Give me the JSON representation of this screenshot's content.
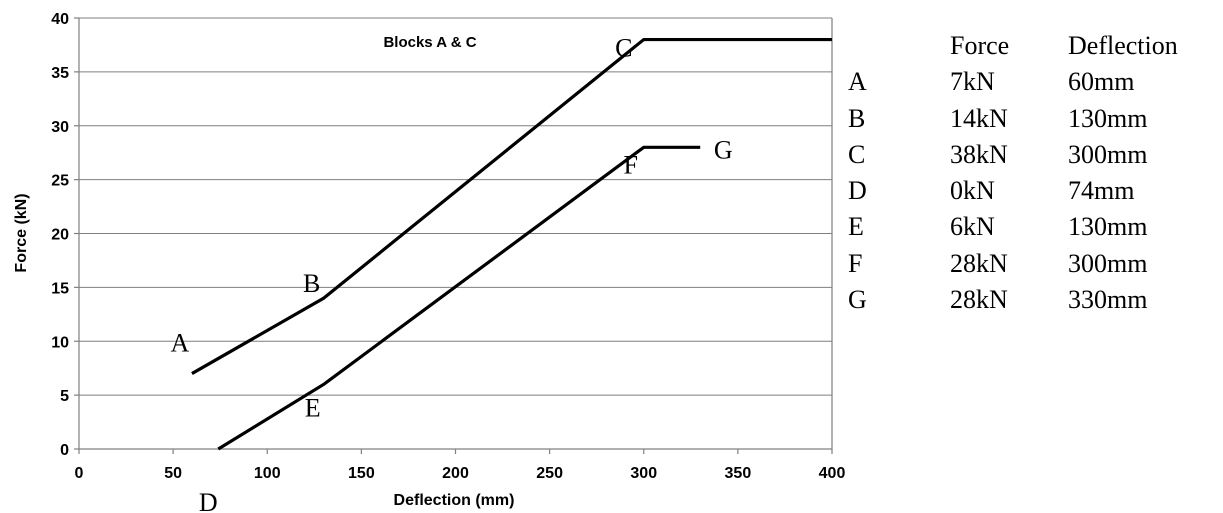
{
  "chart_data": {
    "type": "line",
    "title": "Blocks A & C",
    "xlabel": "Deflection (mm)",
    "ylabel": "Force (kN)",
    "xlim": [
      0,
      400
    ],
    "ylim": [
      0,
      40
    ],
    "xticks": [
      "0",
      "50",
      "100",
      "150",
      "200",
      "250",
      "300",
      "350",
      "400"
    ],
    "yticks": [
      "0",
      "5",
      "10",
      "15",
      "20",
      "25",
      "30",
      "35",
      "40"
    ],
    "grid": "horizontal",
    "series": [
      {
        "x": [
          60,
          130,
          300,
          400
        ],
        "y": [
          7,
          14,
          38,
          38
        ]
      },
      {
        "x": [
          74,
          130,
          300,
          330
        ],
        "y": [
          0,
          6,
          28,
          28
        ]
      }
    ],
    "point_labels": [
      {
        "text": "A",
        "x": 60,
        "y": 7
      },
      {
        "text": "B",
        "x": 130,
        "y": 14
      },
      {
        "text": "C",
        "x": 300,
        "y": 38
      },
      {
        "text": "D",
        "x": 74,
        "y": 0
      },
      {
        "text": "E",
        "x": 130,
        "y": 6
      },
      {
        "text": "F",
        "x": 300,
        "y": 28
      },
      {
        "text": "G",
        "x": 330,
        "y": 28
      }
    ]
  },
  "table": {
    "headers": [
      "",
      "Force",
      "Deflection"
    ],
    "rows": [
      [
        "A",
        "7kN",
        "60mm"
      ],
      [
        "B",
        "14kN",
        "130mm"
      ],
      [
        "C",
        "38kN",
        "300mm"
      ],
      [
        "D",
        "0kN",
        "74mm"
      ],
      [
        "E",
        "6kN",
        "130mm"
      ],
      [
        "F",
        "28kN",
        "300mm"
      ],
      [
        "G",
        "28kN",
        "330mm"
      ]
    ]
  }
}
